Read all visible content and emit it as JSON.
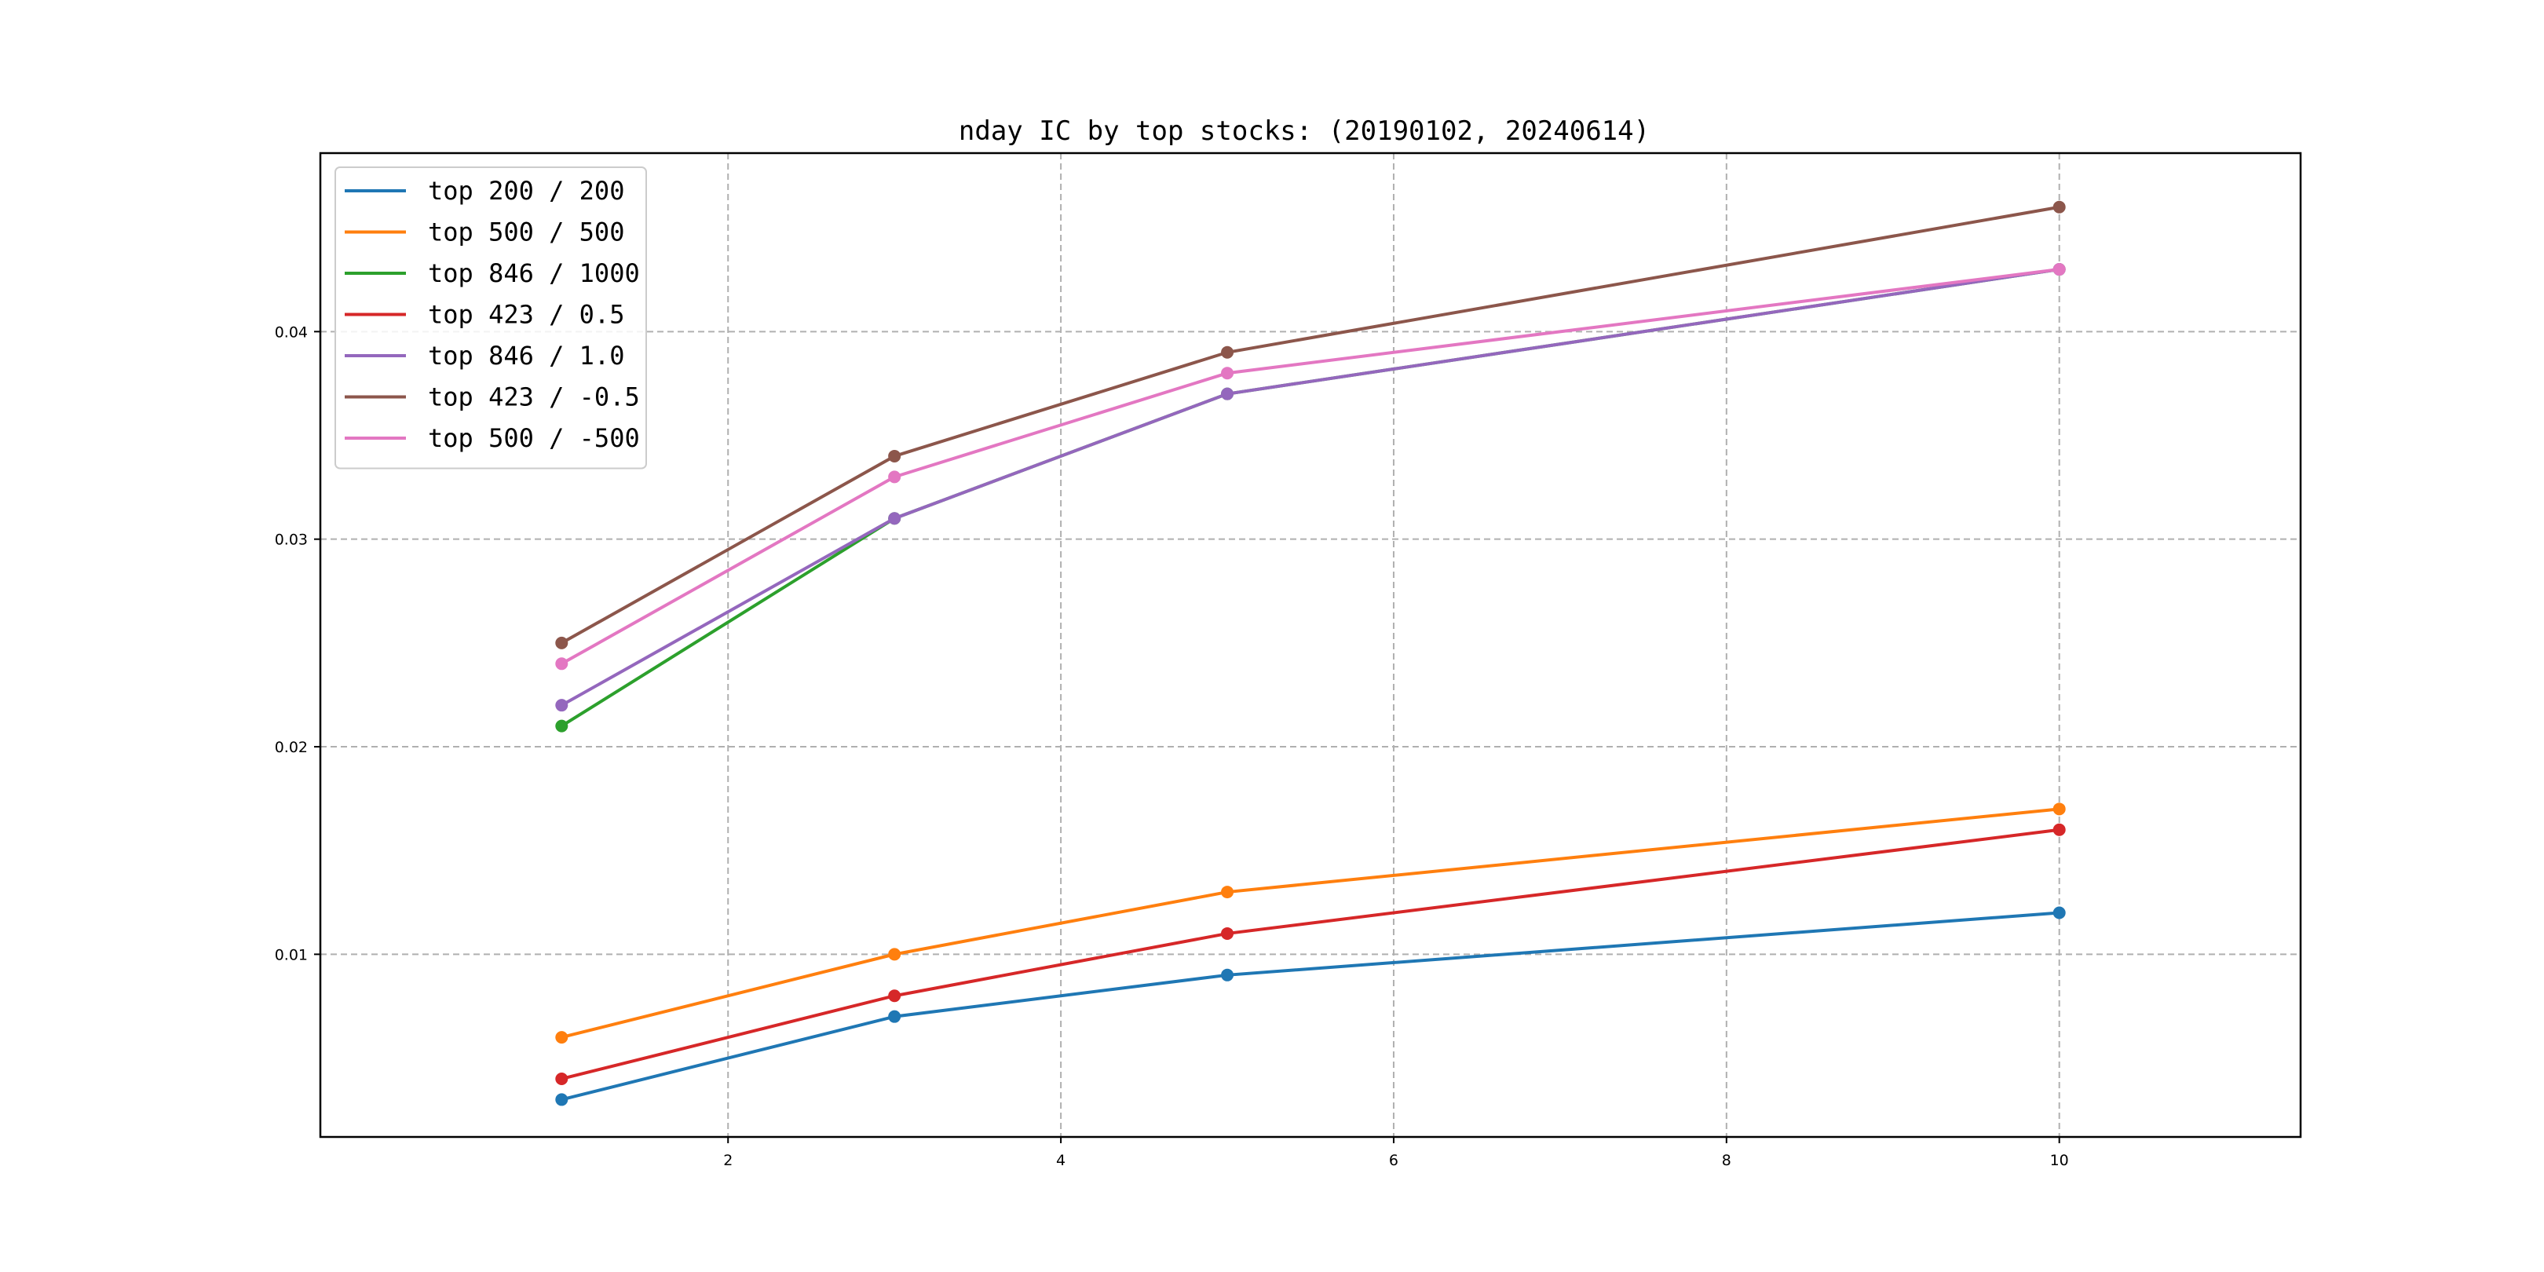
{
  "chart_data": {
    "type": "line",
    "title": "nday IC by top stocks: (20190102, 20240614)",
    "xlabel": "",
    "ylabel": "",
    "x": [
      1,
      3,
      5,
      10
    ],
    "xlim": [
      -0.45,
      11.45
    ],
    "ylim": [
      0.0012,
      0.0486
    ],
    "xticks": [
      2,
      4,
      6,
      8,
      10
    ],
    "xtick_labels": [
      "2",
      "4",
      "6",
      "8",
      "10"
    ],
    "yticks": [
      0.01,
      0.02,
      0.03,
      0.04
    ],
    "ytick_labels": [
      "0.01",
      "0.02",
      "0.03",
      "0.04"
    ],
    "grid": true,
    "legend_position": "top-left",
    "series": [
      {
        "name": "top 200 / 200",
        "color": "#1f77b4",
        "values": [
          0.003,
          0.007,
          0.009,
          0.012
        ]
      },
      {
        "name": "top 500 / 500",
        "color": "#ff7f0e",
        "values": [
          0.006,
          0.01,
          0.013,
          0.017
        ]
      },
      {
        "name": "top 846 / 1000",
        "color": "#2ca02c",
        "values": [
          0.021,
          0.031,
          0.037,
          0.043
        ]
      },
      {
        "name": "top 423 / 0.5",
        "color": "#d62728",
        "values": [
          0.004,
          0.008,
          0.011,
          0.016
        ]
      },
      {
        "name": "top 846 / 1.0",
        "color": "#9467bd",
        "values": [
          0.022,
          0.031,
          0.037,
          0.043
        ]
      },
      {
        "name": "top 423 / -0.5",
        "color": "#8c564b",
        "values": [
          0.025,
          0.034,
          0.039,
          0.046
        ]
      },
      {
        "name": "top 500 / -500",
        "color": "#e377c2",
        "values": [
          0.024,
          0.033,
          0.038,
          0.043
        ]
      }
    ]
  }
}
